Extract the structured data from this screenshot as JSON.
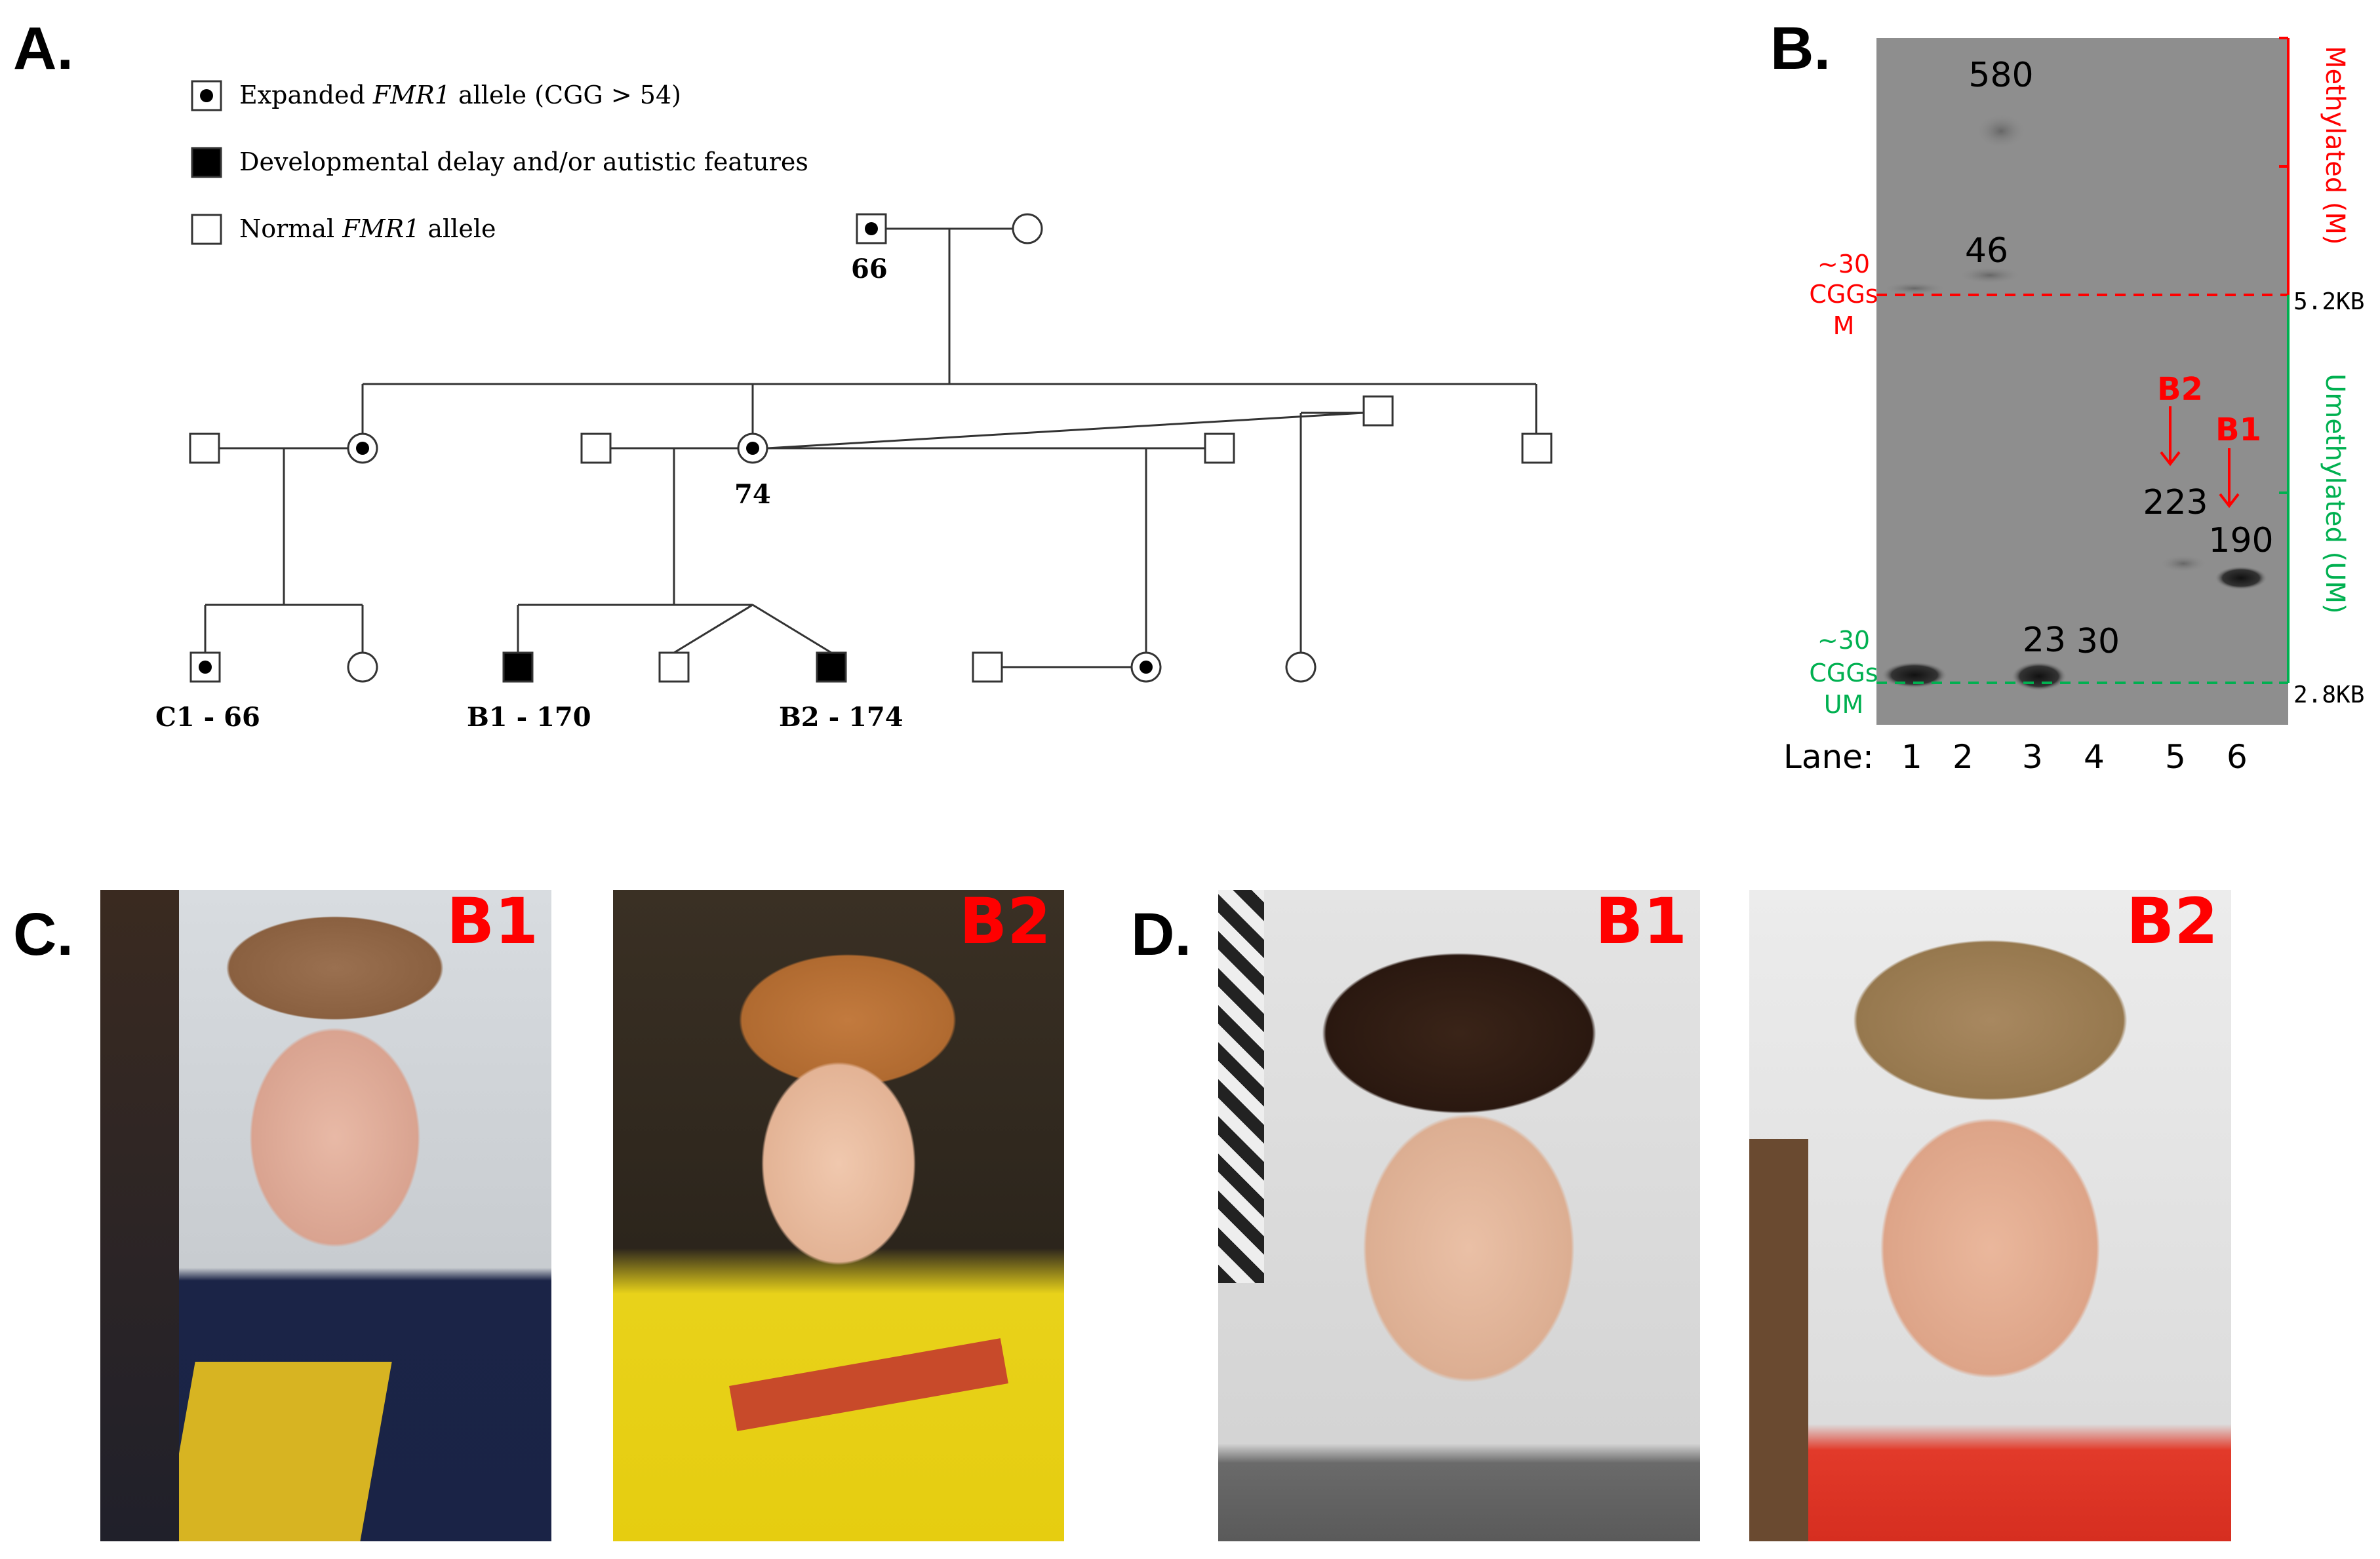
{
  "panels": {
    "a": "A.",
    "b": "B.",
    "c": "C.",
    "d": "D."
  },
  "pedigree": {
    "legend": [
      {
        "symbol": "carrier",
        "text_pre": "Expanded ",
        "text_italic": "FMR1",
        "text_post": " allele (CGG > 54)"
      },
      {
        "symbol": "affected",
        "text_pre": "Developmental delay and/or autistic features",
        "text_italic": "",
        "text_post": ""
      },
      {
        "symbol": "normal",
        "text_pre": "Normal ",
        "text_italic": "FMR1",
        "text_post": " allele"
      }
    ],
    "labels": {
      "grandfather": "66",
      "mother": "74",
      "c1": "C1 - 66",
      "b1": "B1 - 170",
      "b2": "B2 - 174"
    }
  },
  "gel": {
    "band_labels": {
      "b580": "580",
      "b46": "46",
      "b223": "223",
      "b190": "190",
      "b23": "23",
      "b30": "30"
    },
    "left_top": [
      "~30",
      "CGGs",
      "M"
    ],
    "left_bottom": [
      "~30",
      "CGGs",
      "UM"
    ],
    "arrows": {
      "b2": "B2",
      "b1": "B1"
    },
    "right_methylated": "Methylated  (M)",
    "right_unmethylated": "Umethylated  (UM)",
    "size_top": "5.2KB",
    "size_bottom": "2.8KB",
    "lane_prefix": "Lane:",
    "lanes": [
      "1",
      "2",
      "3",
      "4",
      "5",
      "6"
    ],
    "colors": {
      "methylated": "#ff0000",
      "unmethylated": "#00b050"
    }
  },
  "photos": {
    "c_b1": "B1",
    "c_b2": "B2",
    "d_b1": "B1",
    "d_b2": "B2"
  }
}
